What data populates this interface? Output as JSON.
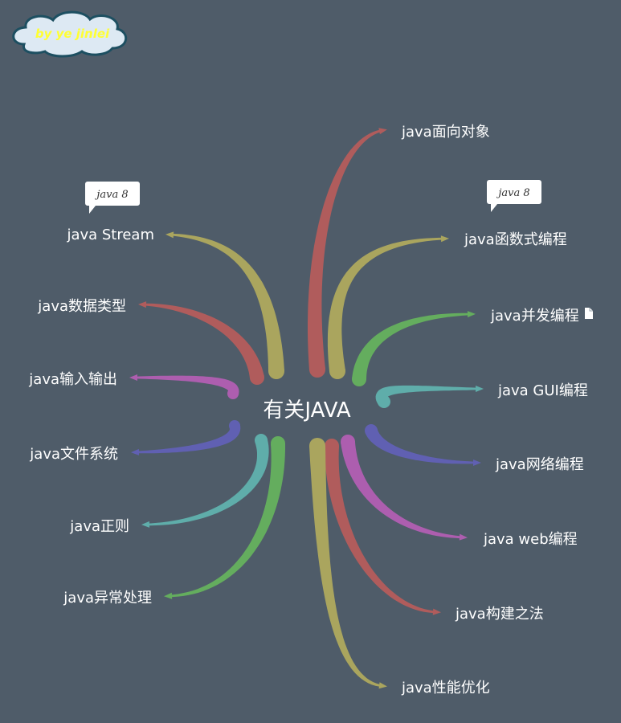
{
  "badge": {
    "text": "by ye jinlei"
  },
  "center": {
    "text": "有关JAVA"
  },
  "branches": [
    {
      "label": "java面向对象",
      "color": "#b05c5c",
      "note": null,
      "attachment": false
    },
    {
      "label": "java函数式编程",
      "color": "#aaa55e",
      "note": "java 8",
      "attachment": false
    },
    {
      "label": "java并发编程",
      "color": "#64ad5e",
      "note": null,
      "attachment": true
    },
    {
      "label": "java GUI编程",
      "color": "#5fadaa",
      "note": null,
      "attachment": false
    },
    {
      "label": "java网络编程",
      "color": "#6060b2",
      "note": null,
      "attachment": false
    },
    {
      "label": "java web编程",
      "color": "#ad5eaf",
      "note": null,
      "attachment": false
    },
    {
      "label": "java构建之法",
      "color": "#b05c5c",
      "note": null,
      "attachment": false
    },
    {
      "label": "java性能优化",
      "color": "#aaa55e",
      "note": null,
      "attachment": false
    },
    {
      "label": "java异常处理",
      "color": "#64ad5e",
      "note": null,
      "attachment": false
    },
    {
      "label": "java正则",
      "color": "#5fadaa",
      "note": null,
      "attachment": false
    },
    {
      "label": "java文件系统",
      "color": "#6060b2",
      "note": null,
      "attachment": false
    },
    {
      "label": "java输入输出",
      "color": "#ad5eaf",
      "note": null,
      "attachment": false
    },
    {
      "label": "java数据类型",
      "color": "#b05c5c",
      "note": null,
      "attachment": false
    },
    {
      "label": "java Stream",
      "color": "#aaa55e",
      "note": "java 8",
      "attachment": false
    }
  ]
}
